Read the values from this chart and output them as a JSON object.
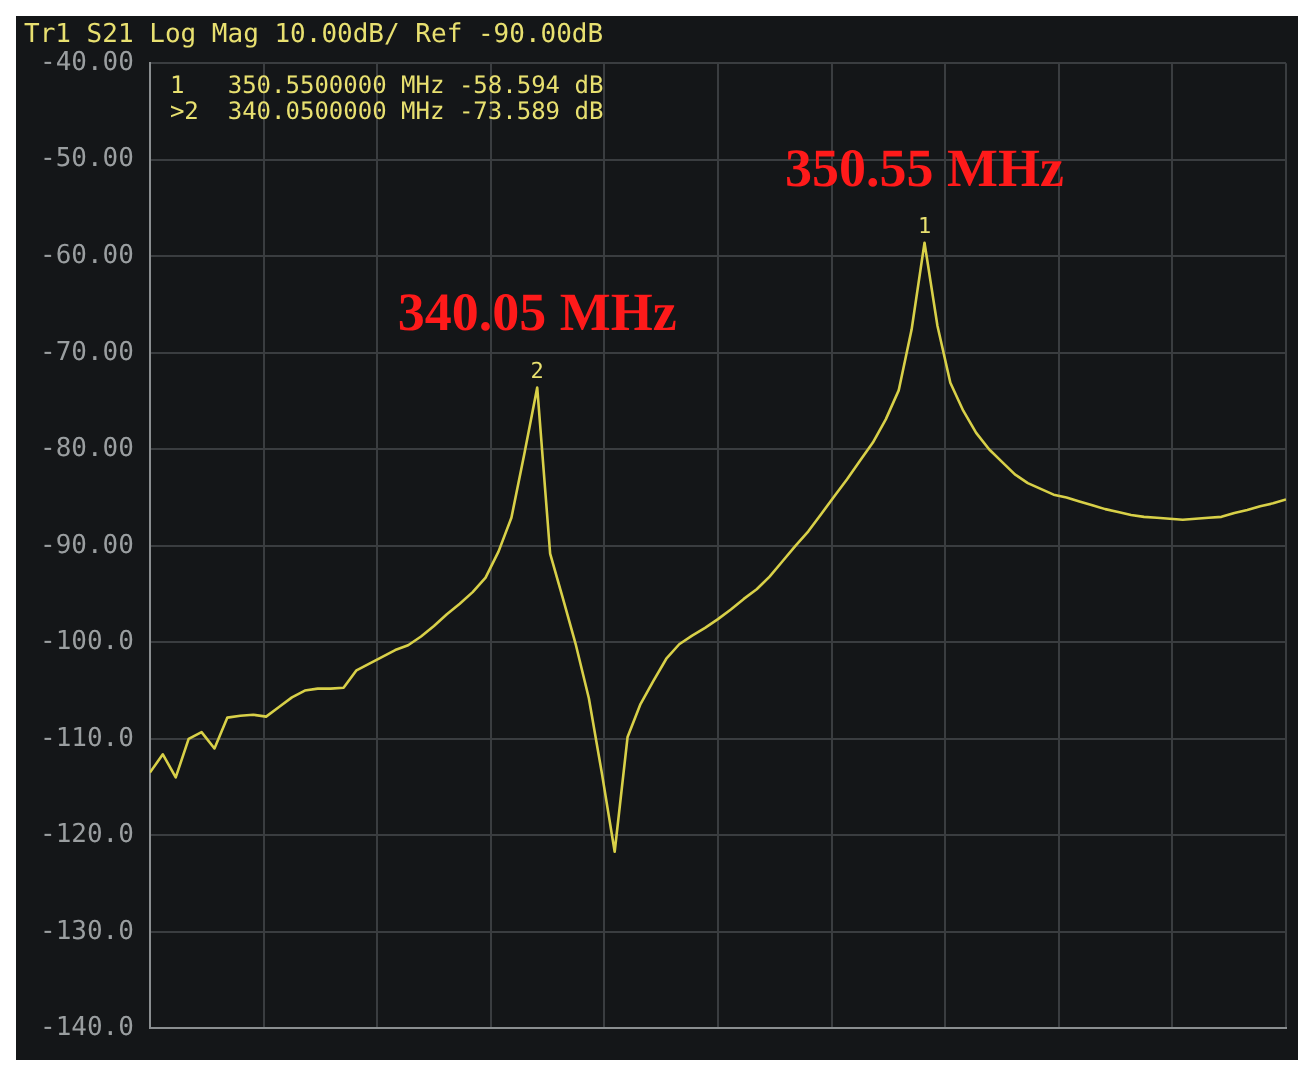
{
  "chart_data": {
    "type": "line",
    "title": "Tr1 S21 Log Mag 10.00dB/ Ref -90.00dB",
    "categories": [
      null,
      null,
      null,
      null,
      null,
      null,
      null,
      null,
      null,
      null,
      null,
      null,
      null,
      null,
      null,
      null,
      null,
      null,
      null,
      null,
      null,
      null,
      null,
      null,
      null,
      null,
      null,
      null,
      null,
      null,
      null,
      null,
      null,
      null,
      null,
      null,
      null,
      null,
      null,
      null,
      null,
      null,
      null,
      null,
      null,
      null,
      null,
      null,
      null,
      null,
      null,
      null,
      null,
      null,
      null,
      null,
      null,
      null,
      null,
      null,
      null,
      null,
      null,
      null,
      null,
      null,
      null,
      null,
      null,
      null,
      null,
      null,
      null,
      null,
      null,
      null,
      null,
      null,
      null,
      null,
      null,
      null,
      null,
      null,
      null,
      null,
      null,
      null,
      null
    ],
    "series": [
      {
        "color": "#d8d048",
        "values": [
          -113.5,
          -111.6,
          -114,
          -110,
          -109.3,
          -111,
          -107.8,
          -107.6,
          -107.5,
          -107.7,
          -106.7,
          -105.7,
          -105,
          -104.8,
          -104.8,
          -104.7,
          -102.9,
          -102.2,
          -101.5,
          -100.8,
          -100.3,
          -99.4,
          -98.3,
          -97.1,
          -96,
          -94.8,
          -93.3,
          -90.6,
          -87.1,
          -80.5,
          -73.6,
          -90.8,
          -95.5,
          -100.3,
          -105.8,
          -113.5,
          -121.7,
          -109.8,
          -106.4,
          -104,
          -101.7,
          -100.2,
          -99.3,
          -98.5,
          -97.6,
          -96.6,
          -95.5,
          -94.5,
          -93.2,
          -91.6,
          -90,
          -88.5,
          -86.7,
          -84.9,
          -83.1,
          -81.2,
          -79.3,
          -76.9,
          -73.9,
          -67.6,
          -58.6,
          -67.2,
          -73.1,
          -76,
          -78.3,
          -80,
          -81.3,
          -82.6,
          -83.5,
          -84.1,
          -84.7,
          -85,
          -85.4,
          -85.8,
          -86.2,
          -86.5,
          -86.8,
          -87,
          -87.1,
          -87.2,
          -87.3,
          -87.2,
          -87.1,
          -87,
          -86.6,
          -86.3,
          -85.9,
          -85.6,
          -85.2
        ]
      }
    ],
    "ylim": [
      -140,
      -40
    ],
    "yticks": [
      {
        "value": -140,
        "label": "-140.0"
      },
      {
        "value": -130,
        "label": "-130.0"
      },
      {
        "value": -120,
        "label": "-120.0"
      },
      {
        "value": -110,
        "label": "-110.0"
      },
      {
        "value": -100,
        "label": "-100.0"
      },
      {
        "value": -90,
        "label": "-90.00"
      },
      {
        "value": -80,
        "label": "-80.00"
      },
      {
        "value": -70,
        "label": "-70.00"
      },
      {
        "value": -60,
        "label": "-60.00"
      },
      {
        "value": -50,
        "label": "-50.00"
      },
      {
        "value": -40,
        "label": "-40.00"
      }
    ],
    "grid": true,
    "marker": "none",
    "line_style": "solid",
    "legend": false,
    "annotations": [
      "1   350.5500000 MHz -58.594 dB",
      ">2  340.0500000 MHz -73.589 dB",
      {
        "text": "340.05 MHz",
        "y": -73.6
      },
      {
        "text": "350.55 MHz",
        "y": -58.6
      },
      {
        "text": "2",
        "y": -73.6
      },
      {
        "text": "1",
        "y": -58.6
      }
    ]
  }
}
